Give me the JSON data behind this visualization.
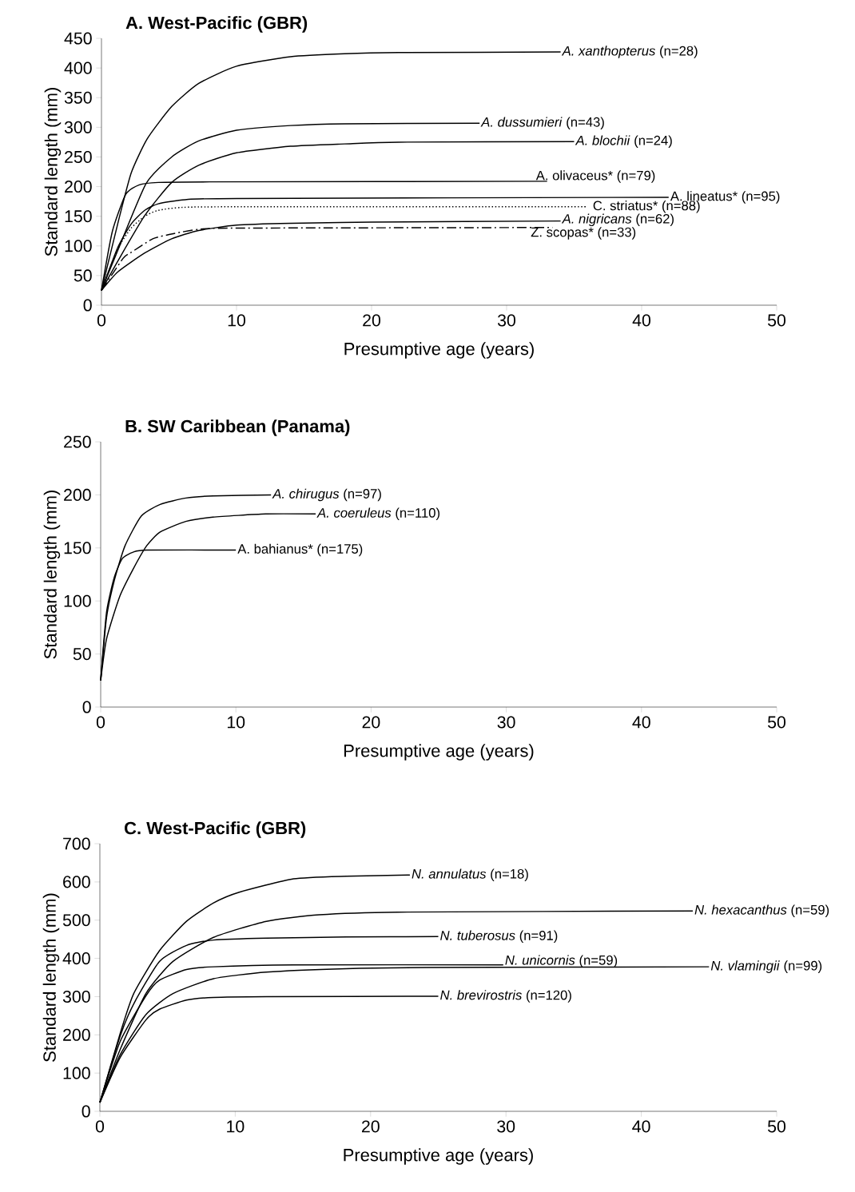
{
  "chart_data": [
    {
      "type": "line",
      "title": "A.  West-Pacific (GBR)",
      "xlabel": "Presumptive age (years)",
      "ylabel": "Standard length (mm)",
      "xlim": [
        0,
        50
      ],
      "ylim": [
        0,
        450
      ],
      "xticks": [
        0,
        10,
        20,
        30,
        40,
        50
      ],
      "yticks": [
        0,
        50,
        100,
        150,
        200,
        250,
        300,
        350,
        400,
        450
      ],
      "grid": false,
      "marker": "none",
      "series": [
        {
          "name": "*A. xanthopterus* (n=28)",
          "color": "#000000",
          "line_style": "solid",
          "x": [
            0,
            1.2,
            2.2,
            3.4,
            5.2,
            7.2,
            10,
            14,
            18,
            22,
            34
          ],
          "values": [
            25,
            137,
            223,
            281,
            335,
            374,
            403,
            419,
            424,
            426,
            427
          ]
        },
        {
          "name": "*A. dussumieri* (n=43)",
          "color": "#000000",
          "line_style": "solid",
          "x": [
            0,
            1.2,
            3.3,
            5.2,
            7.2,
            10,
            14,
            18,
            28
          ],
          "values": [
            25,
            92,
            205,
            250,
            277,
            295,
            303,
            306,
            307
          ]
        },
        {
          "name": "*A. blochii* (n=24)",
          "color": "#000000",
          "line_style": "solid",
          "x": [
            0,
            1.2,
            3.2,
            5.2,
            7.2,
            10,
            14,
            18,
            22,
            35
          ],
          "values": [
            25,
            74,
            151,
            207,
            236,
            257,
            268,
            272,
            275,
            276
          ]
        },
        {
          "name": "A. olivaceus* (n=79)",
          "color": "#000000",
          "line_style": "solid",
          "x": [
            0,
            0.8,
            1.8,
            2.8,
            4.2,
            8,
            33
          ],
          "values": [
            25,
            124,
            187,
            203,
            207,
            208,
            209
          ]
        },
        {
          "name": "A. lineatus* (n=95)",
          "color": "#000000",
          "line_style": "solid",
          "x": [
            0,
            1.2,
            2.2,
            3.2,
            4.2,
            6.2,
            10,
            42
          ],
          "values": [
            25,
            97,
            137,
            160,
            171,
            178,
            180,
            182
          ]
        },
        {
          "name": "C. striatus* (n=88)",
          "color": "#000000",
          "line_style": "dotted",
          "x": [
            0,
            1.2,
            2.2,
            3.2,
            4.2,
            6,
            10,
            36
          ],
          "values": [
            25,
            95,
            130,
            150,
            160,
            165,
            166,
            166
          ]
        },
        {
          "name": "*A. nigricans* (n=62)",
          "color": "#000000",
          "line_style": "solid",
          "x": [
            0,
            1.2,
            3.2,
            5.2,
            7.2,
            10,
            14,
            20,
            34
          ],
          "values": [
            25,
            56,
            88,
            112,
            126,
            135,
            138,
            140,
            142
          ]
        },
        {
          "name": "Z. scopas* (n=33)",
          "color": "#000000",
          "line_style": "dashdot",
          "x": [
            0,
            1.6,
            2.2,
            3.8,
            5.4,
            7.2,
            10,
            33.4
          ],
          "values": [
            25,
            79,
            89,
            112,
            121,
            128,
            130,
            131
          ]
        }
      ]
    },
    {
      "type": "line",
      "title": "B.  SW Caribbean (Panama)",
      "xlabel": "Presumptive age (years)",
      "ylabel": "Standard length (mm)",
      "xlim": [
        0,
        50
      ],
      "ylim": [
        0,
        250
      ],
      "xticks": [
        0,
        10,
        20,
        30,
        40,
        50
      ],
      "yticks": [
        0,
        50,
        100,
        150,
        200,
        250
      ],
      "grid": false,
      "marker": "none",
      "series": [
        {
          "name": "*A. chirugus* (n=97)",
          "color": "#000000",
          "line_style": "solid",
          "x": [
            0,
            0.43,
            1.0,
            1.8,
            3.0,
            4.4,
            6.3,
            8.3,
            12.6
          ],
          "values": [
            25,
            84,
            119,
            152,
            180,
            191,
            197,
            199,
            200
          ]
        },
        {
          "name": "*A. coeruleus* (n=110)",
          "color": "#000000",
          "line_style": "solid",
          "x": [
            0,
            0.43,
            1.4,
            2.4,
            3.4,
            4.4,
            6.3,
            8.3,
            12.2,
            15.9
          ],
          "values": [
            25,
            64,
            104,
            130,
            152,
            165,
            175,
            179,
            182,
            182
          ]
        },
        {
          "name": "A. bahianus* (n=175)",
          "color": "#000000",
          "line_style": "solid",
          "x": [
            0,
            0.43,
            1.0,
            1.6,
            2.4,
            3.4,
            10
          ],
          "values": [
            25,
            89,
            122,
            140,
            146,
            148,
            148
          ]
        }
      ]
    },
    {
      "type": "line",
      "title": "C.  West-Pacific (GBR)",
      "xlabel": "Presumptive age (years)",
      "ylabel": "Standard length (mm)",
      "xlim": [
        0,
        50
      ],
      "ylim": [
        0,
        700
      ],
      "xticks": [
        0,
        10,
        20,
        30,
        40,
        50
      ],
      "yticks": [
        0,
        100,
        200,
        300,
        400,
        500,
        600,
        700
      ],
      "grid": false,
      "marker": "none",
      "series": [
        {
          "name": "*N. annulatus* (n=18)",
          "color": "#000000",
          "line_style": "solid",
          "x": [
            0,
            1.5,
            2.5,
            4.4,
            6.4,
            8.4,
            10.3,
            14.3,
            18.2,
            22.9
          ],
          "values": [
            23,
            204,
            308,
            420,
            497,
            545,
            573,
            608,
            615,
            618
          ]
        },
        {
          "name": "*N. hexacanthus* (n=59)",
          "color": "#000000",
          "line_style": "solid",
          "x": [
            0,
            1.5,
            3.4,
            5.4,
            8.4,
            12.3,
            16.2,
            22,
            43.8
          ],
          "values": [
            23,
            162,
            308,
            392,
            455,
            497,
            514,
            521,
            524
          ]
        },
        {
          "name": "*N. tuberosus* (n=91)",
          "color": "#000000",
          "line_style": "solid",
          "x": [
            0,
            1.5,
            2.5,
            4.4,
            6.4,
            8.4,
            12.3,
            18.2,
            25
          ],
          "values": [
            23,
            197,
            281,
            392,
            434,
            448,
            453,
            456,
            457
          ]
        },
        {
          "name": "*N. unicornis* (n=59)",
          "color": "#000000",
          "line_style": "solid",
          "x": [
            0,
            1.5,
            3.4,
            4.4,
            6.4,
            8.4,
            14.3,
            29.8
          ],
          "values": [
            23,
            183,
            302,
            343,
            371,
            378,
            383,
            383
          ]
        },
        {
          "name": "*N. vlamingii* (n=99)",
          "color": "#000000",
          "line_style": "solid",
          "x": [
            0,
            1.5,
            3.4,
            5.4,
            8.4,
            12.3,
            18.2,
            24.1,
            45
          ],
          "values": [
            23,
            148,
            253,
            308,
            347,
            364,
            373,
            376,
            378
          ]
        },
        {
          "name": "*N. brevirostris* (n=120)",
          "color": "#000000",
          "line_style": "solid",
          "x": [
            0,
            1.5,
            3.4,
            4.4,
            6.4,
            8.4,
            12.3,
            25
          ],
          "values": [
            23,
            141,
            239,
            267,
            291,
            298,
            300,
            301
          ]
        }
      ]
    }
  ]
}
